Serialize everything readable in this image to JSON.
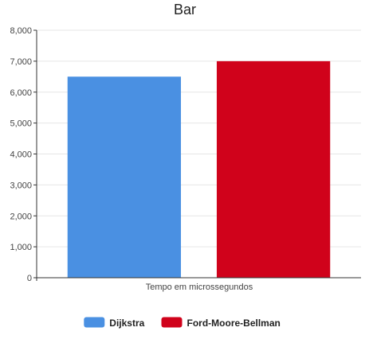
{
  "chart_data": {
    "type": "bar",
    "title": "Bar",
    "xlabel": "Tempo em microssegundos",
    "ylabel": "",
    "ylim": [
      0,
      8000
    ],
    "yticks": [
      "0",
      "1,000",
      "2,000",
      "3,000",
      "4,000",
      "5,000",
      "6,000",
      "7,000",
      "8,000"
    ],
    "grid": true,
    "legend_position": "bottom",
    "categories": [
      "Tempo em microssegundos"
    ],
    "series": [
      {
        "name": "Dijkstra",
        "values": [
          6500
        ],
        "color": "#4a90e2"
      },
      {
        "name": "Ford-Moore-Bellman",
        "values": [
          7000
        ],
        "color": "#d0021b"
      }
    ]
  }
}
